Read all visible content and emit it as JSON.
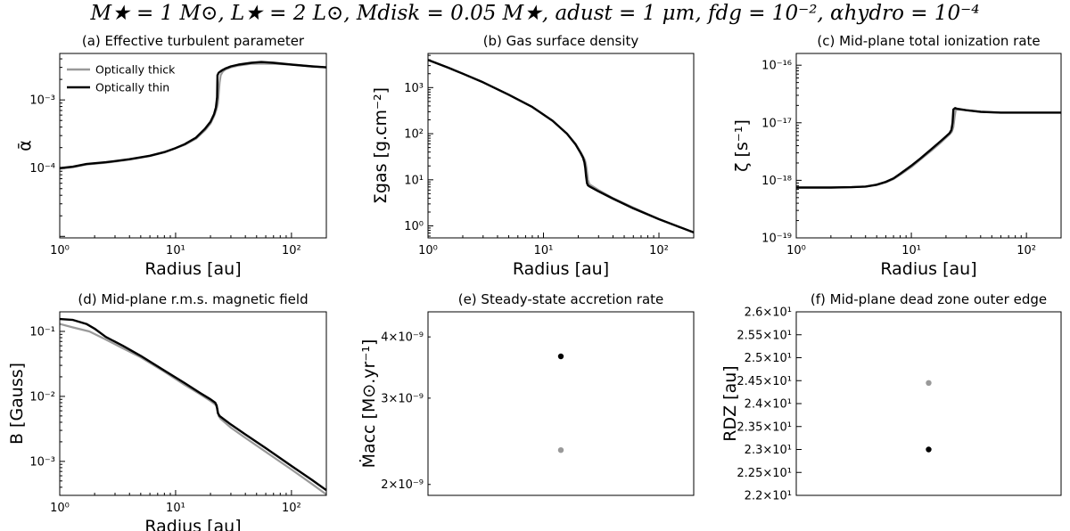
{
  "figure": {
    "suptitle": "M★ = 1 M⊙, L★ = 2 L⊙, Mdisk = 0.05 M★, adust = 1 μm, fdg = 10⁻², αhydro = 10⁻⁴"
  },
  "legend": {
    "placement": "upper-left",
    "entries": [
      "Optically thick",
      "Optically thin"
    ]
  },
  "colors": {
    "optically_thick": "#999999",
    "optically_thin": "#000000"
  },
  "chart_data": [
    {
      "id": "a",
      "type": "line",
      "title": "(a) Effective turbulent parameter",
      "xlabel": "Radius [au]",
      "ylabel": "ᾱ",
      "xscale": "log",
      "yscale": "log",
      "xlim": [
        1,
        200
      ],
      "ylim": [
        9.5e-06,
        0.0048
      ],
      "xticks": [
        {
          "v": 1,
          "label": "10⁰"
        },
        {
          "v": 10,
          "label": "10¹"
        },
        {
          "v": 100,
          "label": "10²"
        }
      ],
      "yticks": [
        {
          "v": 0.0001,
          "label": "10⁻⁴"
        },
        {
          "v": 0.001,
          "label": "10⁻³"
        }
      ],
      "legend": true,
      "series": [
        {
          "name": "Optically thick",
          "color": "#999999",
          "x": [
            1,
            1.3,
            1.7,
            2.5,
            4,
            6,
            8,
            10,
            12,
            15,
            18,
            20,
            21.5,
            22.5,
            23.2,
            23.6,
            24,
            24.5,
            25.5,
            27,
            30,
            35,
            45,
            55,
            70,
            100,
            150,
            200
          ],
          "y": [
            9.8e-05,
            0.000103,
            0.000113,
            0.00012,
            0.000133,
            0.00015,
            0.00017,
            0.000195,
            0.00022,
            0.00027,
            0.00036,
            0.00045,
            0.00058,
            0.00072,
            0.0009,
            0.0013,
            0.0018,
            0.0023,
            0.0026,
            0.0028,
            0.003,
            0.0032,
            0.0034,
            0.0034,
            0.0034,
            0.0033,
            0.0031,
            0.003
          ]
        },
        {
          "name": "Optically thin",
          "color": "#000000",
          "x": [
            1,
            1.3,
            1.7,
            2.5,
            4,
            6,
            8,
            10,
            12,
            15,
            18,
            20,
            21.5,
            22.3,
            22.8,
            23,
            23.5,
            25,
            27,
            30,
            35,
            45,
            55,
            70,
            100,
            150,
            200
          ],
          "y": [
            0.0001,
            0.000105,
            0.000115,
            0.000122,
            0.000135,
            0.000152,
            0.000172,
            0.000197,
            0.000225,
            0.00028,
            0.00038,
            0.00048,
            0.00062,
            0.00078,
            0.0011,
            0.0023,
            0.0025,
            0.0027,
            0.0029,
            0.0031,
            0.0033,
            0.0035,
            0.0036,
            0.0035,
            0.0033,
            0.0031,
            0.003
          ]
        }
      ]
    },
    {
      "id": "b",
      "type": "line",
      "title": "(b) Gas surface density",
      "xlabel": "Radius [au]",
      "ylabel": "Σgas [g.cm⁻²]",
      "xscale": "log",
      "yscale": "log",
      "xlim": [
        1,
        200
      ],
      "ylim": [
        0.55,
        5500
      ],
      "xticks": [
        {
          "v": 1,
          "label": "10⁰"
        },
        {
          "v": 10,
          "label": "10¹"
        },
        {
          "v": 100,
          "label": "10²"
        }
      ],
      "yticks": [
        {
          "v": 1,
          "label": "10⁰"
        },
        {
          "v": 10,
          "label": "10¹"
        },
        {
          "v": 100,
          "label": "10²"
        },
        {
          "v": 1000,
          "label": "10³"
        }
      ],
      "series": [
        {
          "name": "Optically thick",
          "color": "#999999",
          "x": [
            1,
            1.5,
            2,
            3,
            5,
            8,
            12,
            16,
            19,
            21,
            22,
            22.8,
            23.3,
            23.8,
            24.3,
            25,
            30,
            40,
            60,
            100,
            150,
            200
          ],
          "y": [
            4000,
            2700,
            2000,
            1300,
            700,
            380,
            190,
            100,
            60,
            40,
            32,
            27,
            22,
            15,
            10,
            8,
            6,
            4,
            2.5,
            1.4,
            0.95,
            0.72
          ]
        },
        {
          "name": "Optically thin",
          "color": "#000000",
          "x": [
            1,
            1.5,
            2,
            3,
            5,
            8,
            12,
            16,
            19,
            21,
            22,
            22.6,
            23,
            23.4,
            23.8,
            24.3,
            25,
            30,
            40,
            60,
            100,
            150,
            200
          ],
          "y": [
            4000,
            2700,
            2000,
            1300,
            700,
            380,
            190,
            100,
            58,
            38,
            30,
            24,
            18,
            12,
            8.5,
            7.6,
            7.2,
            5.6,
            3.9,
            2.4,
            1.4,
            0.95,
            0.72
          ]
        }
      ]
    },
    {
      "id": "c",
      "type": "line",
      "title": "(c) Mid-plane total ionization rate",
      "xlabel": "Radius [au]",
      "ylabel": "ζ [s⁻¹]",
      "xscale": "log",
      "yscale": "log",
      "xlim": [
        1,
        200
      ],
      "ylim": [
        1e-19,
        1.6e-16
      ],
      "xticks": [
        {
          "v": 1,
          "label": "10⁰"
        },
        {
          "v": 10,
          "label": "10¹"
        },
        {
          "v": 100,
          "label": "10²"
        }
      ],
      "yticks": [
        {
          "v": 1e-19,
          "label": "10⁻¹⁹"
        },
        {
          "v": 1e-18,
          "label": "10⁻¹⁸"
        },
        {
          "v": 1e-17,
          "label": "10⁻¹⁷"
        },
        {
          "v": 1e-16,
          "label": "10⁻¹⁶"
        }
      ],
      "series": [
        {
          "name": "Optically thick",
          "color": "#999999",
          "x": [
            1,
            2,
            3,
            4,
            5,
            6,
            7,
            8,
            10,
            12,
            15,
            18,
            20,
            21.5,
            22.5,
            23.2,
            23.8,
            24.3,
            25,
            30,
            40,
            60,
            80,
            100,
            150,
            200
          ],
          "y": [
            7.5e-19,
            7.5e-19,
            7.6e-19,
            7.8e-19,
            8.3e-19,
            9.2e-19,
            1.05e-18,
            1.25e-18,
            1.7e-18,
            2.3e-18,
            3.3e-18,
            4.5e-18,
            5.5e-18,
            6.3e-18,
            7e-18,
            8.5e-18,
            1.3e-17,
            1.65e-17,
            1.7e-17,
            1.65e-17,
            1.55e-17,
            1.5e-17,
            1.5e-17,
            1.5e-17,
            1.5e-17,
            1.5e-17
          ]
        },
        {
          "name": "Optically thin",
          "color": "#000000",
          "x": [
            1,
            2,
            3,
            4,
            5,
            6,
            7,
            8,
            10,
            12,
            15,
            18,
            20,
            21.5,
            22.3,
            22.8,
            23.2,
            24,
            25,
            30,
            40,
            60,
            80,
            100,
            150,
            200
          ],
          "y": [
            7.5e-19,
            7.5e-19,
            7.6e-19,
            7.8e-19,
            8.4e-19,
            9.4e-19,
            1.08e-18,
            1.3e-18,
            1.8e-18,
            2.4e-18,
            3.5e-18,
            4.8e-18,
            5.8e-18,
            6.6e-18,
            7.5e-18,
            1e-17,
            1.7e-17,
            1.8e-17,
            1.75e-17,
            1.65e-17,
            1.55e-17,
            1.5e-17,
            1.5e-17,
            1.5e-17,
            1.5e-17,
            1.5e-17
          ]
        }
      ]
    },
    {
      "id": "d",
      "type": "line",
      "title": "(d) Mid-plane r.m.s. magnetic field",
      "xlabel": "Radius [au]",
      "ylabel": "B [Gauss]",
      "xscale": "log",
      "yscale": "log",
      "xlim": [
        1,
        200
      ],
      "ylim": [
        0.0003,
        0.2
      ],
      "xticks": [
        {
          "v": 1,
          "label": "10⁰"
        },
        {
          "v": 10,
          "label": "10¹"
        },
        {
          "v": 100,
          "label": "10²"
        }
      ],
      "yticks": [
        {
          "v": 0.001,
          "label": "10⁻³"
        },
        {
          "v": 0.01,
          "label": "10⁻²"
        },
        {
          "v": 0.1,
          "label": "10⁻¹"
        }
      ],
      "series": [
        {
          "name": "Optically thick",
          "color": "#999999",
          "x": [
            1,
            1.3,
            1.8,
            2.5,
            3.5,
            5,
            8,
            12,
            16,
            20,
            22,
            23,
            23.5,
            24.5,
            30,
            40,
            60,
            100,
            150,
            200
          ],
          "y": [
            0.13,
            0.115,
            0.1,
            0.075,
            0.055,
            0.04,
            0.024,
            0.015,
            0.011,
            0.0085,
            0.0075,
            0.0065,
            0.005,
            0.0045,
            0.0033,
            0.0023,
            0.0014,
            0.00075,
            0.00045,
            0.00031
          ]
        },
        {
          "name": "Optically thin",
          "color": "#000000",
          "x": [
            1,
            1.3,
            1.7,
            2,
            2.5,
            3.5,
            5,
            8,
            12,
            16,
            20,
            22,
            22.6,
            23.2,
            24,
            30,
            40,
            60,
            100,
            150,
            200
          ],
          "y": [
            0.155,
            0.15,
            0.13,
            0.11,
            0.082,
            0.06,
            0.042,
            0.025,
            0.016,
            0.0115,
            0.009,
            0.008,
            0.0072,
            0.0055,
            0.005,
            0.0037,
            0.0026,
            0.0016,
            0.00085,
            0.00052,
            0.00036
          ]
        }
      ]
    },
    {
      "id": "e",
      "type": "scatter",
      "title": "(e) Steady-state accretion rate",
      "ylabel": "Ṁacc [M⊙.yr⁻¹]",
      "yscale": "log",
      "ylim": [
        1.9e-09,
        4.5e-09
      ],
      "yticks": [
        {
          "v": 2e-09,
          "label": "2×10⁻⁹"
        },
        {
          "v": 3e-09,
          "label": "3×10⁻⁹"
        },
        {
          "v": 4e-09,
          "label": "4×10⁻⁹"
        }
      ],
      "series": [
        {
          "name": "Optically thick",
          "color": "#999999",
          "y": 2.35e-09
        },
        {
          "name": "Optically thin",
          "color": "#000000",
          "y": 3.65e-09
        }
      ]
    },
    {
      "id": "f",
      "type": "scatter",
      "title": "(f) Mid-plane dead zone outer edge",
      "ylabel": "RDZ [au]",
      "yscale": "linear",
      "ylim": [
        22,
        26
      ],
      "yticks": [
        {
          "v": 22,
          "label": "2.2×10¹"
        },
        {
          "v": 22.5,
          "label": "2.25×10¹"
        },
        {
          "v": 23,
          "label": "2.3×10¹"
        },
        {
          "v": 23.5,
          "label": "2.35×10¹"
        },
        {
          "v": 24,
          "label": "2.4×10¹"
        },
        {
          "v": 24.5,
          "label": "2.45×10¹"
        },
        {
          "v": 25,
          "label": "2.5×10¹"
        },
        {
          "v": 25.5,
          "label": "2.55×10¹"
        },
        {
          "v": 26,
          "label": "2.6×10¹"
        }
      ],
      "series": [
        {
          "name": "Optically thick",
          "color": "#999999",
          "y": 24.45
        },
        {
          "name": "Optically thin",
          "color": "#000000",
          "y": 23.0
        }
      ]
    }
  ]
}
